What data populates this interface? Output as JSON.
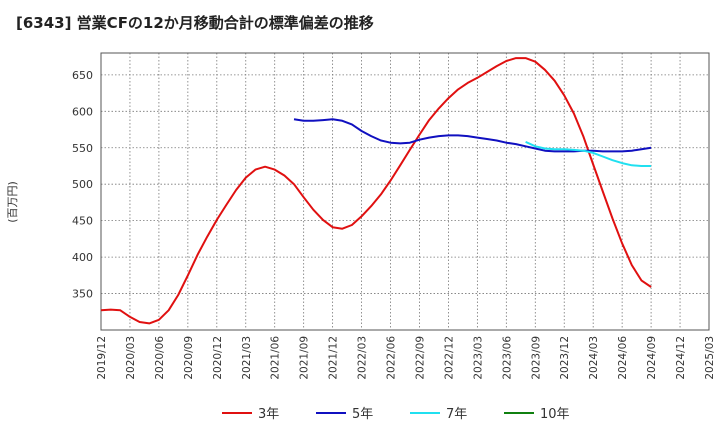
{
  "chart_data": {
    "type": "line",
    "title": "[6343]  営業CFの12か月移動合計の標準偏差の推移",
    "ylabel": "(百万円)",
    "ylim": [
      300,
      680
    ],
    "yticks": [
      350,
      400,
      450,
      500,
      550,
      600,
      650
    ],
    "xticks": [
      "2019/12",
      "2020/03",
      "2020/06",
      "2020/09",
      "2020/12",
      "2021/03",
      "2021/06",
      "2021/09",
      "2021/12",
      "2022/03",
      "2022/06",
      "2022/09",
      "2022/12",
      "2023/03",
      "2023/06",
      "2023/09",
      "2023/12",
      "2024/03",
      "2024/06",
      "2024/09",
      "2024/12",
      "2025/03"
    ],
    "grid": true,
    "legend_position": "bottom",
    "series": [
      {
        "name": "3年",
        "color": "#e01010",
        "x": [
          "2019/12",
          "2020/01",
          "2020/02",
          "2020/03",
          "2020/04",
          "2020/05",
          "2020/06",
          "2020/07",
          "2020/08",
          "2020/09",
          "2020/10",
          "2020/11",
          "2020/12",
          "2021/01",
          "2021/02",
          "2021/03",
          "2021/04",
          "2021/05",
          "2021/06",
          "2021/07",
          "2021/08",
          "2021/09",
          "2021/10",
          "2021/11",
          "2021/12",
          "2022/01",
          "2022/02",
          "2022/03",
          "2022/04",
          "2022/05",
          "2022/06",
          "2022/07",
          "2022/08",
          "2022/09",
          "2022/10",
          "2022/11",
          "2022/12",
          "2023/01",
          "2023/02",
          "2023/03",
          "2023/04",
          "2023/05",
          "2023/06",
          "2023/07",
          "2023/08",
          "2023/09",
          "2023/10",
          "2023/11",
          "2023/12",
          "2024/01",
          "2024/02",
          "2024/03",
          "2024/04",
          "2024/05",
          "2024/06",
          "2024/07",
          "2024/08",
          "2024/09"
        ],
        "values": [
          327,
          328,
          327,
          318,
          311,
          309,
          314,
          327,
          348,
          375,
          403,
          428,
          451,
          472,
          492,
          509,
          520,
          524,
          520,
          512,
          500,
          482,
          465,
          451,
          441,
          439,
          444,
          456,
          470,
          486,
          505,
          526,
          547,
          568,
          588,
          604,
          618,
          630,
          639,
          646,
          654,
          662,
          669,
          673,
          673,
          668,
          657,
          642,
          622,
          597,
          565,
          527,
          490,
          453,
          419,
          389,
          368,
          359
        ]
      },
      {
        "name": "5年",
        "color": "#1010c0",
        "x": [
          "2021/08",
          "2021/09",
          "2021/10",
          "2021/11",
          "2021/12",
          "2022/01",
          "2022/02",
          "2022/03",
          "2022/04",
          "2022/05",
          "2022/06",
          "2022/07",
          "2022/08",
          "2022/09",
          "2022/10",
          "2022/11",
          "2022/12",
          "2023/01",
          "2023/02",
          "2023/03",
          "2023/04",
          "2023/05",
          "2023/06",
          "2023/07",
          "2023/08",
          "2023/09",
          "2023/10",
          "2023/11",
          "2023/12",
          "2024/01",
          "2024/02",
          "2024/03",
          "2024/04",
          "2024/05",
          "2024/06",
          "2024/07",
          "2024/08",
          "2024/09"
        ],
        "values": [
          589,
          587,
          587,
          588,
          589,
          587,
          582,
          573,
          566,
          560,
          557,
          556,
          557,
          561,
          564,
          566,
          567,
          567,
          566,
          564,
          562,
          560,
          557,
          555,
          552,
          549,
          546,
          545,
          545,
          545,
          546,
          546,
          545,
          545,
          545,
          546,
          548,
          550
        ]
      },
      {
        "name": "7年",
        "color": "#20e0f0",
        "x": [
          "2023/08",
          "2023/09",
          "2023/10",
          "2023/11",
          "2023/12",
          "2024/01",
          "2024/02",
          "2024/03",
          "2024/04",
          "2024/05",
          "2024/06",
          "2024/07",
          "2024/08",
          "2024/09"
        ],
        "values": [
          558,
          552,
          549,
          548,
          548,
          547,
          546,
          543,
          538,
          533,
          529,
          526,
          525,
          525
        ]
      },
      {
        "name": "10年",
        "color": "#108010",
        "x": [],
        "values": []
      }
    ]
  }
}
